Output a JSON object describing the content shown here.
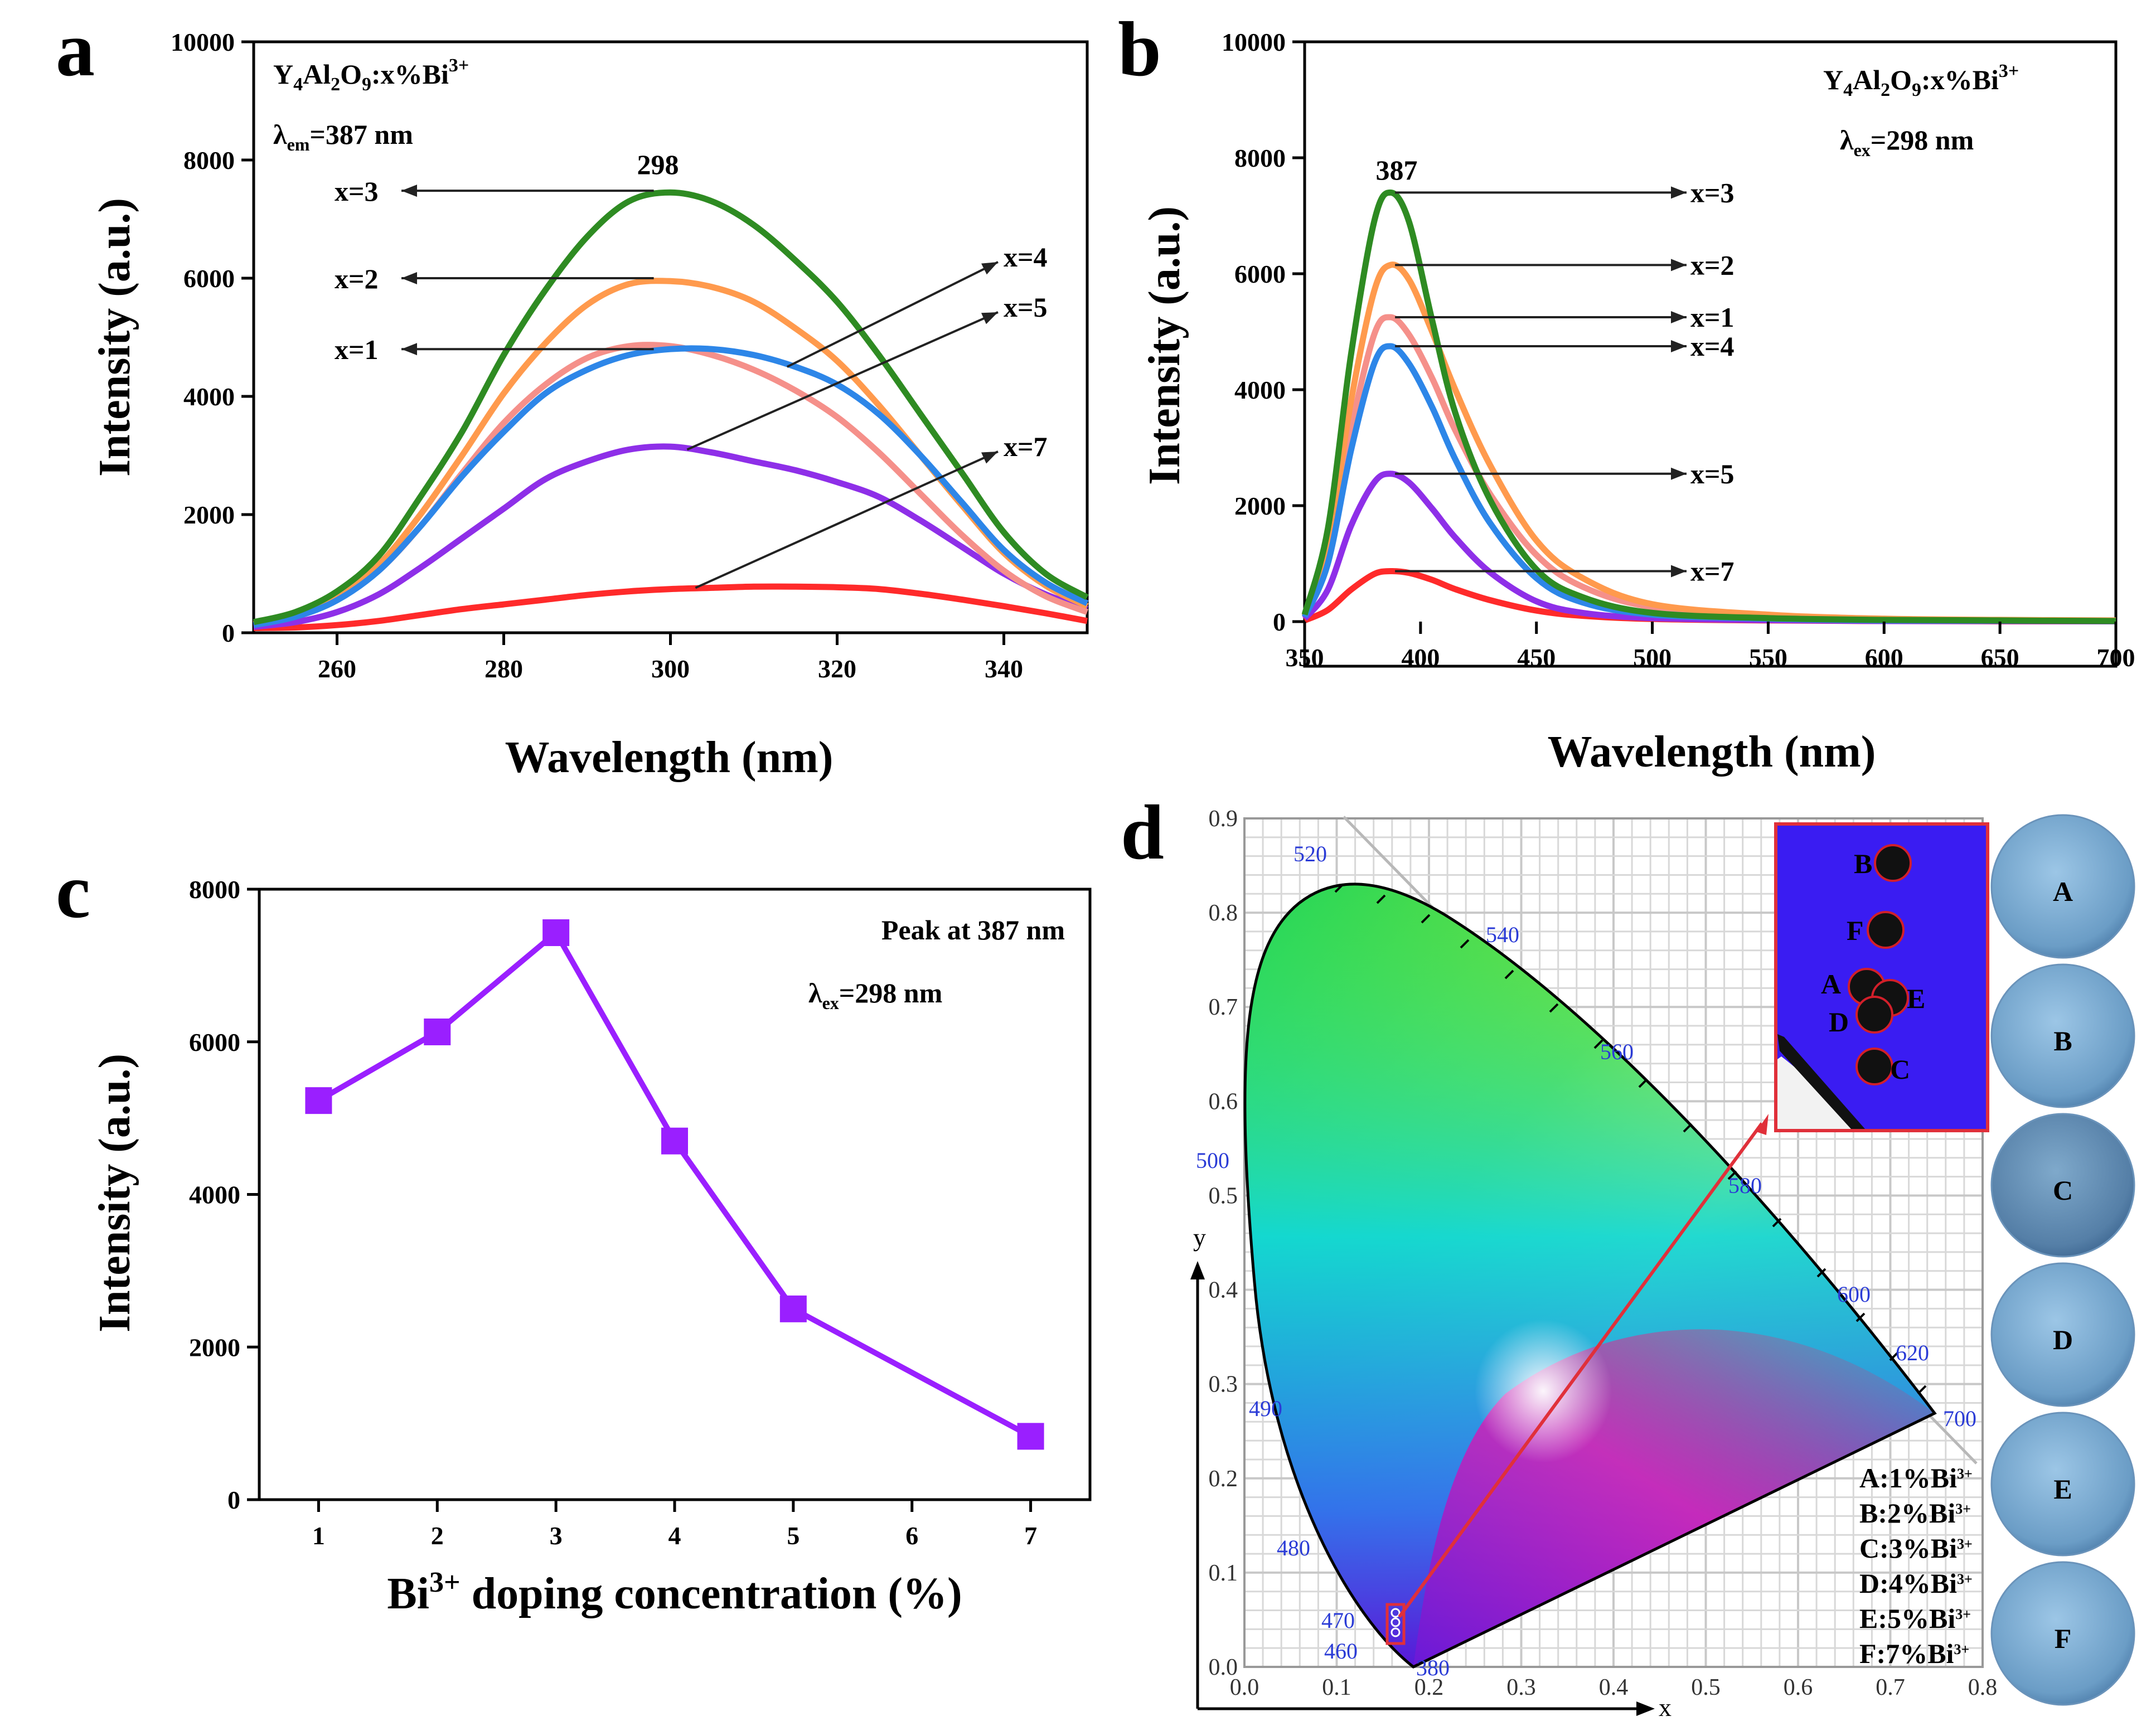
{
  "panels": {
    "a": {
      "letter": "a",
      "chart_data": {
        "type": "line",
        "xlabel": "Wavelength (nm)",
        "ylabel": "Intensity (a.u.)",
        "xlim": [
          250,
          350
        ],
        "ylim": [
          0,
          10000
        ],
        "xticks": [
          260,
          280,
          300,
          320,
          340
        ],
        "yticks": [
          0,
          2000,
          4000,
          6000,
          8000,
          10000
        ],
        "annotations": [
          "Y4Al2O9:x%Bi3+",
          "λem=387 nm"
        ],
        "annotation_parts": {
          "formula": [
            "Y",
            "4",
            "Al",
            "2",
            "O",
            "9",
            ":x%Bi",
            "3+"
          ],
          "lambda": [
            "λ",
            "em",
            "=387 nm"
          ]
        },
        "peak_label": "298",
        "curve_labels": [
          "x=3",
          "x=2",
          "x=1",
          "x=4",
          "x=5",
          "x=7"
        ],
        "x": [
          250,
          255,
          260,
          265,
          270,
          275,
          280,
          285,
          290,
          295,
          300,
          305,
          310,
          315,
          320,
          325,
          330,
          335,
          340,
          345,
          350
        ],
        "series": [
          {
            "name": "x=3",
            "color": "#2e8b22",
            "values": [
              180,
              350,
              700,
              1300,
              2300,
              3400,
              4700,
              5800,
              6700,
              7300,
              7450,
              7300,
              6900,
              6300,
              5600,
              4700,
              3700,
              2700,
              1700,
              1000,
              600
            ]
          },
          {
            "name": "x=2",
            "color": "#ff9a4d",
            "values": [
              150,
              300,
              600,
              1150,
              2000,
              3000,
              4050,
              4900,
              5550,
              5900,
              5950,
              5850,
              5600,
              5150,
              4600,
              3850,
              3000,
              2150,
              1350,
              800,
              450
            ]
          },
          {
            "name": "x=1",
            "color": "#f5908a",
            "values": [
              150,
              280,
              560,
              1050,
              1800,
              2700,
              3550,
              4200,
              4650,
              4850,
              4850,
              4700,
              4450,
              4100,
              3650,
              3050,
              2350,
              1650,
              1050,
              620,
              350
            ]
          },
          {
            "name": "x=4",
            "color": "#2d86e8",
            "values": [
              130,
              270,
              550,
              1050,
              1800,
              2650,
              3400,
              4050,
              4450,
              4700,
              4800,
              4800,
              4700,
              4500,
              4200,
              3700,
              3000,
              2200,
              1400,
              850,
              500
            ]
          },
          {
            "name": "x=5",
            "color": "#8e2fe8",
            "values": [
              100,
              180,
              350,
              650,
              1100,
              1600,
              2100,
              2600,
              2900,
              3100,
              3150,
              3050,
              2900,
              2750,
              2550,
              2300,
              1900,
              1450,
              1000,
              650,
              400
            ]
          },
          {
            "name": "x=7",
            "color": "#ff2a2a",
            "values": [
              80,
              90,
              130,
              200,
              300,
              400,
              480,
              560,
              640,
              700,
              740,
              760,
              780,
              780,
              770,
              740,
              660,
              560,
              450,
              330,
              200
            ]
          }
        ]
      }
    },
    "b": {
      "letter": "b",
      "chart_data": {
        "type": "line",
        "xlabel": "Wavelength (nm)",
        "ylabel": "Intensity (a.u.)",
        "xlim": [
          350,
          700
        ],
        "ylim": [
          0,
          10000
        ],
        "xticks": [
          350,
          400,
          450,
          500,
          550,
          600,
          650,
          700
        ],
        "yticks": [
          0,
          2000,
          4000,
          6000,
          8000,
          10000
        ],
        "annotations": [
          "Y4Al2O9:x%Bi3+",
          "λex=298 nm"
        ],
        "annotation_parts": {
          "formula": [
            "Y",
            "4",
            "Al",
            "2",
            "O",
            "9",
            ":x%Bi",
            "3+"
          ],
          "lambda": [
            "λ",
            "ex",
            "=298 nm"
          ]
        },
        "peak_label": "387",
        "curve_labels": [
          "x=3",
          "x=2",
          "x=1",
          "x=4",
          "x=5",
          "x=7"
        ],
        "x": [
          350,
          360,
          370,
          380,
          387,
          395,
          405,
          415,
          430,
          450,
          470,
          500,
          550,
          600,
          650,
          700
        ],
        "series": [
          {
            "name": "x=3",
            "color": "#2e8b22",
            "values": [
              120,
              1600,
              4600,
              6900,
              7400,
              6900,
              5200,
              3600,
              2100,
              900,
              420,
              150,
              60,
              30,
              20,
              10
            ]
          },
          {
            "name": "x=2",
            "color": "#ff9a4d",
            "values": [
              100,
              1300,
              3800,
              5700,
              6150,
              5900,
              5000,
              4000,
              2700,
              1400,
              750,
              300,
              120,
              50,
              30,
              20
            ]
          },
          {
            "name": "x=1",
            "color": "#f5908a",
            "values": [
              90,
              1100,
              3300,
              4950,
              5250,
              4950,
              4200,
              3300,
              2200,
              1150,
              600,
              250,
              100,
              40,
              25,
              15
            ]
          },
          {
            "name": "x=4",
            "color": "#2d86e8",
            "values": [
              80,
              1000,
              2950,
              4450,
              4750,
              4450,
              3700,
              2800,
              1700,
              750,
              330,
              120,
              50,
              20,
              15,
              10
            ]
          },
          {
            "name": "x=5",
            "color": "#8e2fe8",
            "values": [
              50,
              550,
              1650,
              2400,
              2550,
              2400,
              1950,
              1450,
              850,
              350,
              150,
              60,
              25,
              10,
              10,
              5
            ]
          },
          {
            "name": "x=7",
            "color": "#ff2a2a",
            "values": [
              20,
              200,
              550,
              820,
              870,
              840,
              720,
              560,
              370,
              190,
              100,
              45,
              20,
              10,
              5,
              5
            ]
          }
        ]
      }
    },
    "c": {
      "letter": "c",
      "chart_data": {
        "type": "line",
        "xlabel": "Bi3+ doping concentration (%)",
        "xlabel_parts": [
          "Bi",
          "3+",
          " doping concentration (%)"
        ],
        "ylabel": "Intensity (a.u.)",
        "xlim": [
          0.5,
          7.5
        ],
        "ylim": [
          0,
          8000
        ],
        "xticks": [
          1,
          2,
          3,
          4,
          5,
          6,
          7
        ],
        "yticks": [
          0,
          2000,
          4000,
          6000,
          8000
        ],
        "annotations": [
          "Peak at 387 nm",
          "λex=298 nm"
        ],
        "annotation_parts": {
          "lambda": [
            "λ",
            "ex",
            "=298 nm"
          ]
        },
        "color": "#9a1fff",
        "x": [
          1,
          2,
          3,
          4,
          5,
          7
        ],
        "values": [
          5230,
          6130,
          7430,
          4700,
          2500,
          830
        ]
      }
    },
    "d": {
      "letter": "d",
      "chart_data": {
        "type": "scatter",
        "xlabel": "x",
        "ylabel": "y",
        "xlim": [
          0,
          0.8
        ],
        "ylim": [
          0,
          0.9
        ],
        "xticks": [
          "0.0",
          "0.1",
          "0.2",
          "0.3",
          "0.4",
          "0.5",
          "0.6",
          "0.7",
          "0.8"
        ],
        "yticks": [
          "0.0",
          "0.1",
          "0.2",
          "0.3",
          "0.4",
          "0.5",
          "0.6",
          "0.7",
          "0.8",
          "0.9"
        ],
        "wavelength_labels": [
          "520",
          "540",
          "560",
          "580",
          "600",
          "620",
          "700",
          "500",
          "490",
          "480",
          "470",
          "460",
          "380"
        ],
        "inset_points": [
          {
            "label": "B",
            "x": 0.166,
            "y": 0.028
          },
          {
            "label": "F",
            "x": 0.165,
            "y": 0.022
          },
          {
            "label": "A",
            "x": 0.165,
            "y": 0.016
          },
          {
            "label": "E",
            "x": 0.166,
            "y": 0.015
          },
          {
            "label": "D",
            "x": 0.165,
            "y": 0.014
          },
          {
            "label": "C",
            "x": 0.165,
            "y": 0.009
          }
        ],
        "legend": [
          "A:1%Bi3+",
          "B:2%Bi3+",
          "C:3%Bi3+",
          "D:4%Bi3+",
          "E:5%Bi3+",
          "F:7%Bi3+"
        ],
        "legend_items": [
          {
            "prefix": "A:1%Bi",
            "sup": "3+"
          },
          {
            "prefix": "B:2%Bi",
            "sup": "3+"
          },
          {
            "prefix": "C:3%Bi",
            "sup": "3+"
          },
          {
            "prefix": "D:4%Bi",
            "sup": "3+"
          },
          {
            "prefix": "E:5%Bi",
            "sup": "3+"
          },
          {
            "prefix": "F:7%Bi",
            "sup": "3+"
          }
        ],
        "sample_photos": [
          "A",
          "B",
          "C",
          "D",
          "E",
          "F"
        ],
        "colors": {
          "inset_bg": "#3a1cf2",
          "frame": "#e0303a",
          "photo": "#8fb6d6"
        }
      }
    }
  }
}
